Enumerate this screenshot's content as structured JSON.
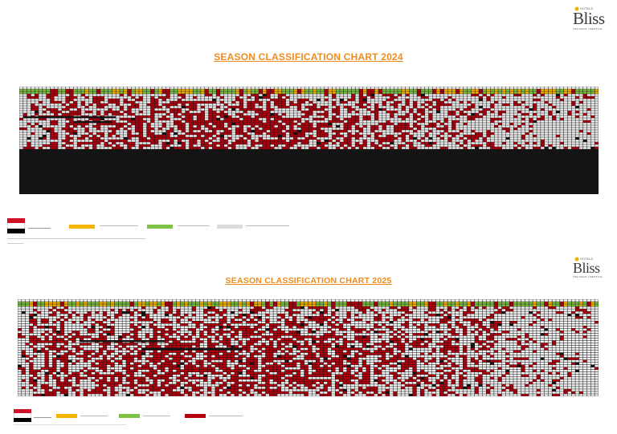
{
  "titles": {
    "chart_2024": "SEASON CLASSIFICATION CHART 2024",
    "chart_2025": "SEASON CLASSIFICATION CHART 2025"
  },
  "logo": {
    "brand": "Bliss",
    "prefix": "HOTELS",
    "tagline": "THE RIGHT LIFESTYLE"
  },
  "colors": {
    "title": "#f08c1e",
    "high": "#b5000e",
    "shoulder": "#f5b400",
    "low": "#7dc242",
    "closed": "#141414",
    "grid": "#ffffff",
    "flag_red": "#ce1126",
    "flag_white": "#ffffff",
    "flag_black": "#000000"
  },
  "icons": {
    "flag": "egypt-flag-icon",
    "logo": "bliss-logo-icon"
  }
}
